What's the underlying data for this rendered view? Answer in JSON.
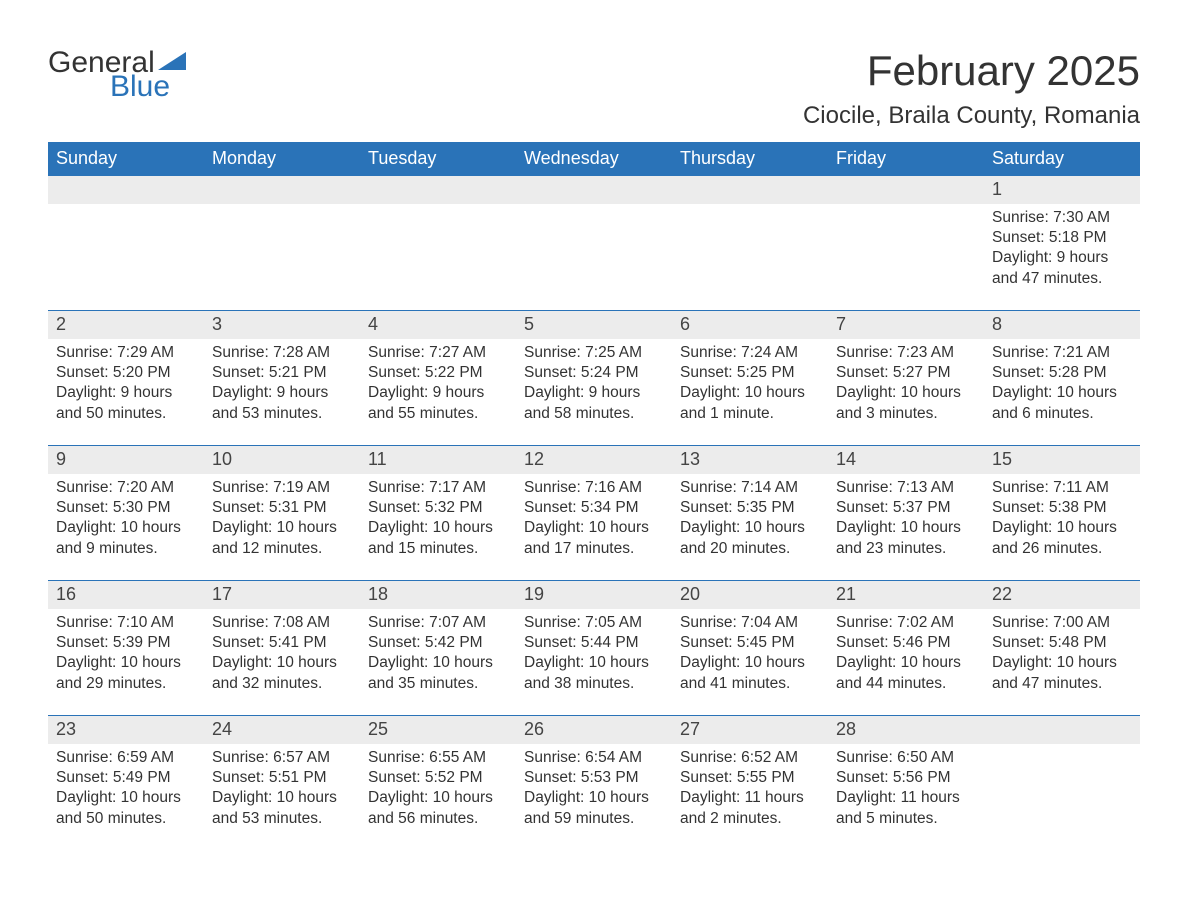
{
  "brand": {
    "general": "General",
    "blue": "Blue"
  },
  "colors": {
    "header_bg": "#2a73b8",
    "header_text": "#ffffff",
    "daynum_bg": "#ececec",
    "row_border": "#2a73b8",
    "brand_blue": "#2a73b8",
    "text": "#333333",
    "bg": "#ffffff"
  },
  "fonts": {
    "month_title_pt": 42,
    "location_pt": 24,
    "dayheader_pt": 18,
    "daynum_pt": 18,
    "body_pt": 15.5
  },
  "title": {
    "month": "February 2025",
    "location": "Ciocile, Braila County, Romania"
  },
  "dayHeaders": [
    "Sunday",
    "Monday",
    "Tuesday",
    "Wednesday",
    "Thursday",
    "Friday",
    "Saturday"
  ],
  "weeks": [
    [
      {
        "empty": true
      },
      {
        "empty": true
      },
      {
        "empty": true
      },
      {
        "empty": true
      },
      {
        "empty": true
      },
      {
        "empty": true
      },
      {
        "day": "1",
        "sunrise": "Sunrise: 7:30 AM",
        "sunset": "Sunset: 5:18 PM",
        "daylight": "Daylight: 9 hours and 47 minutes."
      }
    ],
    [
      {
        "day": "2",
        "sunrise": "Sunrise: 7:29 AM",
        "sunset": "Sunset: 5:20 PM",
        "daylight": "Daylight: 9 hours and 50 minutes."
      },
      {
        "day": "3",
        "sunrise": "Sunrise: 7:28 AM",
        "sunset": "Sunset: 5:21 PM",
        "daylight": "Daylight: 9 hours and 53 minutes."
      },
      {
        "day": "4",
        "sunrise": "Sunrise: 7:27 AM",
        "sunset": "Sunset: 5:22 PM",
        "daylight": "Daylight: 9 hours and 55 minutes."
      },
      {
        "day": "5",
        "sunrise": "Sunrise: 7:25 AM",
        "sunset": "Sunset: 5:24 PM",
        "daylight": "Daylight: 9 hours and 58 minutes."
      },
      {
        "day": "6",
        "sunrise": "Sunrise: 7:24 AM",
        "sunset": "Sunset: 5:25 PM",
        "daylight": "Daylight: 10 hours and 1 minute."
      },
      {
        "day": "7",
        "sunrise": "Sunrise: 7:23 AM",
        "sunset": "Sunset: 5:27 PM",
        "daylight": "Daylight: 10 hours and 3 minutes."
      },
      {
        "day": "8",
        "sunrise": "Sunrise: 7:21 AM",
        "sunset": "Sunset: 5:28 PM",
        "daylight": "Daylight: 10 hours and 6 minutes."
      }
    ],
    [
      {
        "day": "9",
        "sunrise": "Sunrise: 7:20 AM",
        "sunset": "Sunset: 5:30 PM",
        "daylight": "Daylight: 10 hours and 9 minutes."
      },
      {
        "day": "10",
        "sunrise": "Sunrise: 7:19 AM",
        "sunset": "Sunset: 5:31 PM",
        "daylight": "Daylight: 10 hours and 12 minutes."
      },
      {
        "day": "11",
        "sunrise": "Sunrise: 7:17 AM",
        "sunset": "Sunset: 5:32 PM",
        "daylight": "Daylight: 10 hours and 15 minutes."
      },
      {
        "day": "12",
        "sunrise": "Sunrise: 7:16 AM",
        "sunset": "Sunset: 5:34 PM",
        "daylight": "Daylight: 10 hours and 17 minutes."
      },
      {
        "day": "13",
        "sunrise": "Sunrise: 7:14 AM",
        "sunset": "Sunset: 5:35 PM",
        "daylight": "Daylight: 10 hours and 20 minutes."
      },
      {
        "day": "14",
        "sunrise": "Sunrise: 7:13 AM",
        "sunset": "Sunset: 5:37 PM",
        "daylight": "Daylight: 10 hours and 23 minutes."
      },
      {
        "day": "15",
        "sunrise": "Sunrise: 7:11 AM",
        "sunset": "Sunset: 5:38 PM",
        "daylight": "Daylight: 10 hours and 26 minutes."
      }
    ],
    [
      {
        "day": "16",
        "sunrise": "Sunrise: 7:10 AM",
        "sunset": "Sunset: 5:39 PM",
        "daylight": "Daylight: 10 hours and 29 minutes."
      },
      {
        "day": "17",
        "sunrise": "Sunrise: 7:08 AM",
        "sunset": "Sunset: 5:41 PM",
        "daylight": "Daylight: 10 hours and 32 minutes."
      },
      {
        "day": "18",
        "sunrise": "Sunrise: 7:07 AM",
        "sunset": "Sunset: 5:42 PM",
        "daylight": "Daylight: 10 hours and 35 minutes."
      },
      {
        "day": "19",
        "sunrise": "Sunrise: 7:05 AM",
        "sunset": "Sunset: 5:44 PM",
        "daylight": "Daylight: 10 hours and 38 minutes."
      },
      {
        "day": "20",
        "sunrise": "Sunrise: 7:04 AM",
        "sunset": "Sunset: 5:45 PM",
        "daylight": "Daylight: 10 hours and 41 minutes."
      },
      {
        "day": "21",
        "sunrise": "Sunrise: 7:02 AM",
        "sunset": "Sunset: 5:46 PM",
        "daylight": "Daylight: 10 hours and 44 minutes."
      },
      {
        "day": "22",
        "sunrise": "Sunrise: 7:00 AM",
        "sunset": "Sunset: 5:48 PM",
        "daylight": "Daylight: 10 hours and 47 minutes."
      }
    ],
    [
      {
        "day": "23",
        "sunrise": "Sunrise: 6:59 AM",
        "sunset": "Sunset: 5:49 PM",
        "daylight": "Daylight: 10 hours and 50 minutes."
      },
      {
        "day": "24",
        "sunrise": "Sunrise: 6:57 AM",
        "sunset": "Sunset: 5:51 PM",
        "daylight": "Daylight: 10 hours and 53 minutes."
      },
      {
        "day": "25",
        "sunrise": "Sunrise: 6:55 AM",
        "sunset": "Sunset: 5:52 PM",
        "daylight": "Daylight: 10 hours and 56 minutes."
      },
      {
        "day": "26",
        "sunrise": "Sunrise: 6:54 AM",
        "sunset": "Sunset: 5:53 PM",
        "daylight": "Daylight: 10 hours and 59 minutes."
      },
      {
        "day": "27",
        "sunrise": "Sunrise: 6:52 AM",
        "sunset": "Sunset: 5:55 PM",
        "daylight": "Daylight: 11 hours and 2 minutes."
      },
      {
        "day": "28",
        "sunrise": "Sunrise: 6:50 AM",
        "sunset": "Sunset: 5:56 PM",
        "daylight": "Daylight: 11 hours and 5 minutes."
      },
      {
        "empty": true
      }
    ]
  ]
}
